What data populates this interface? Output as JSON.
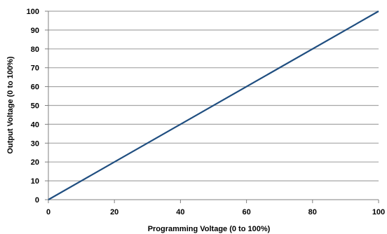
{
  "chart_data": {
    "type": "line",
    "title": "",
    "xlabel": "Programming Voltage (0 to 100%)",
    "ylabel": "Output Voltage (0 to 100%)",
    "xlim": [
      0,
      100
    ],
    "ylim": [
      0,
      100
    ],
    "x_ticks": [
      "0",
      "20",
      "40",
      "60",
      "80",
      "100"
    ],
    "y_ticks": [
      "0",
      "10",
      "20",
      "30",
      "40",
      "50",
      "60",
      "70",
      "80",
      "90",
      "100"
    ],
    "grid": "horizontal",
    "legend": "none",
    "series": [
      {
        "x": [
          0,
          100
        ],
        "y": [
          0,
          100
        ],
        "color": "#1f4e80"
      }
    ],
    "colors": {
      "gridline": "#a6a6a6",
      "axis": "#808080"
    }
  }
}
